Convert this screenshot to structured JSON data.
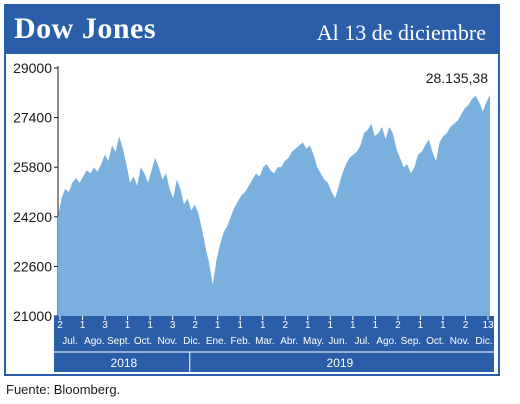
{
  "header": {
    "title": "Dow Jones",
    "subtitle": "Al 13 de diciembre"
  },
  "source": "Fuente: Bloomberg.",
  "colors": {
    "brand_blue": "#2a5ea8",
    "area_fill": "#7ab0de"
  },
  "chart_data": {
    "type": "area",
    "title": "Dow Jones",
    "ylim": [
      21000,
      29000
    ],
    "yticks": [
      21000,
      22600,
      24200,
      25800,
      27400,
      29000
    ],
    "ytick_labels": [
      "21000",
      "22600",
      "24200",
      "25800",
      "27400",
      "29000"
    ],
    "grid": false,
    "annotation": {
      "text": "28.135,38",
      "value": 28135.38
    },
    "x_day_labels": [
      "2",
      "1",
      "3",
      "1",
      "1",
      "3",
      "2",
      "1",
      "1",
      "1",
      "2",
      "1",
      "1",
      "1",
      "1",
      "2",
      "1",
      "1",
      "2",
      "13"
    ],
    "x_month_labels": [
      "Jul.",
      "Ago.",
      "Sept.",
      "Oct.",
      "Nov.",
      "Dic.",
      "Ene.",
      "Feb.",
      "Mar.",
      "Abr.",
      "May.",
      "Jun.",
      "Jul.",
      "Ago.",
      "Sep.",
      "Oct.",
      "Nov.",
      "Dic."
    ],
    "x_year_labels": [
      "2018",
      "2019"
    ],
    "series": [
      {
        "values": [
          24200,
          24800,
          25100,
          25000,
          25300,
          25450,
          25300,
          25500,
          25700,
          25600,
          25800,
          25650,
          25900,
          26200,
          26000,
          26500,
          26300,
          26800,
          26400,
          25900,
          25300,
          25500,
          25200,
          25800,
          25600,
          25300,
          25700,
          26100,
          25800,
          25400,
          25600,
          25100,
          24800,
          25400,
          25100,
          24600,
          24800,
          24400,
          24600,
          24300,
          23800,
          23200,
          22700,
          22000,
          22800,
          23300,
          23700,
          23900,
          24200,
          24500,
          24700,
          24900,
          25000,
          25200,
          25400,
          25600,
          25500,
          25800,
          25900,
          25700,
          25600,
          25800,
          25800,
          26000,
          26100,
          26300,
          26400,
          26500,
          26600,
          26400,
          26500,
          26200,
          25800,
          25600,
          25400,
          25300,
          25000,
          24800,
          25200,
          25600,
          25900,
          26100,
          26200,
          26300,
          26500,
          26900,
          27000,
          27200,
          26800,
          26900,
          27100,
          26700,
          27100,
          26900,
          26400,
          26100,
          25800,
          25900,
          25600,
          25800,
          26200,
          26300,
          26500,
          26700,
          26300,
          26000,
          26600,
          26800,
          26900,
          27100,
          27200,
          27300,
          27500,
          27700,
          27800,
          28000,
          28100,
          27900,
          27600,
          27900,
          28135
        ]
      }
    ]
  }
}
